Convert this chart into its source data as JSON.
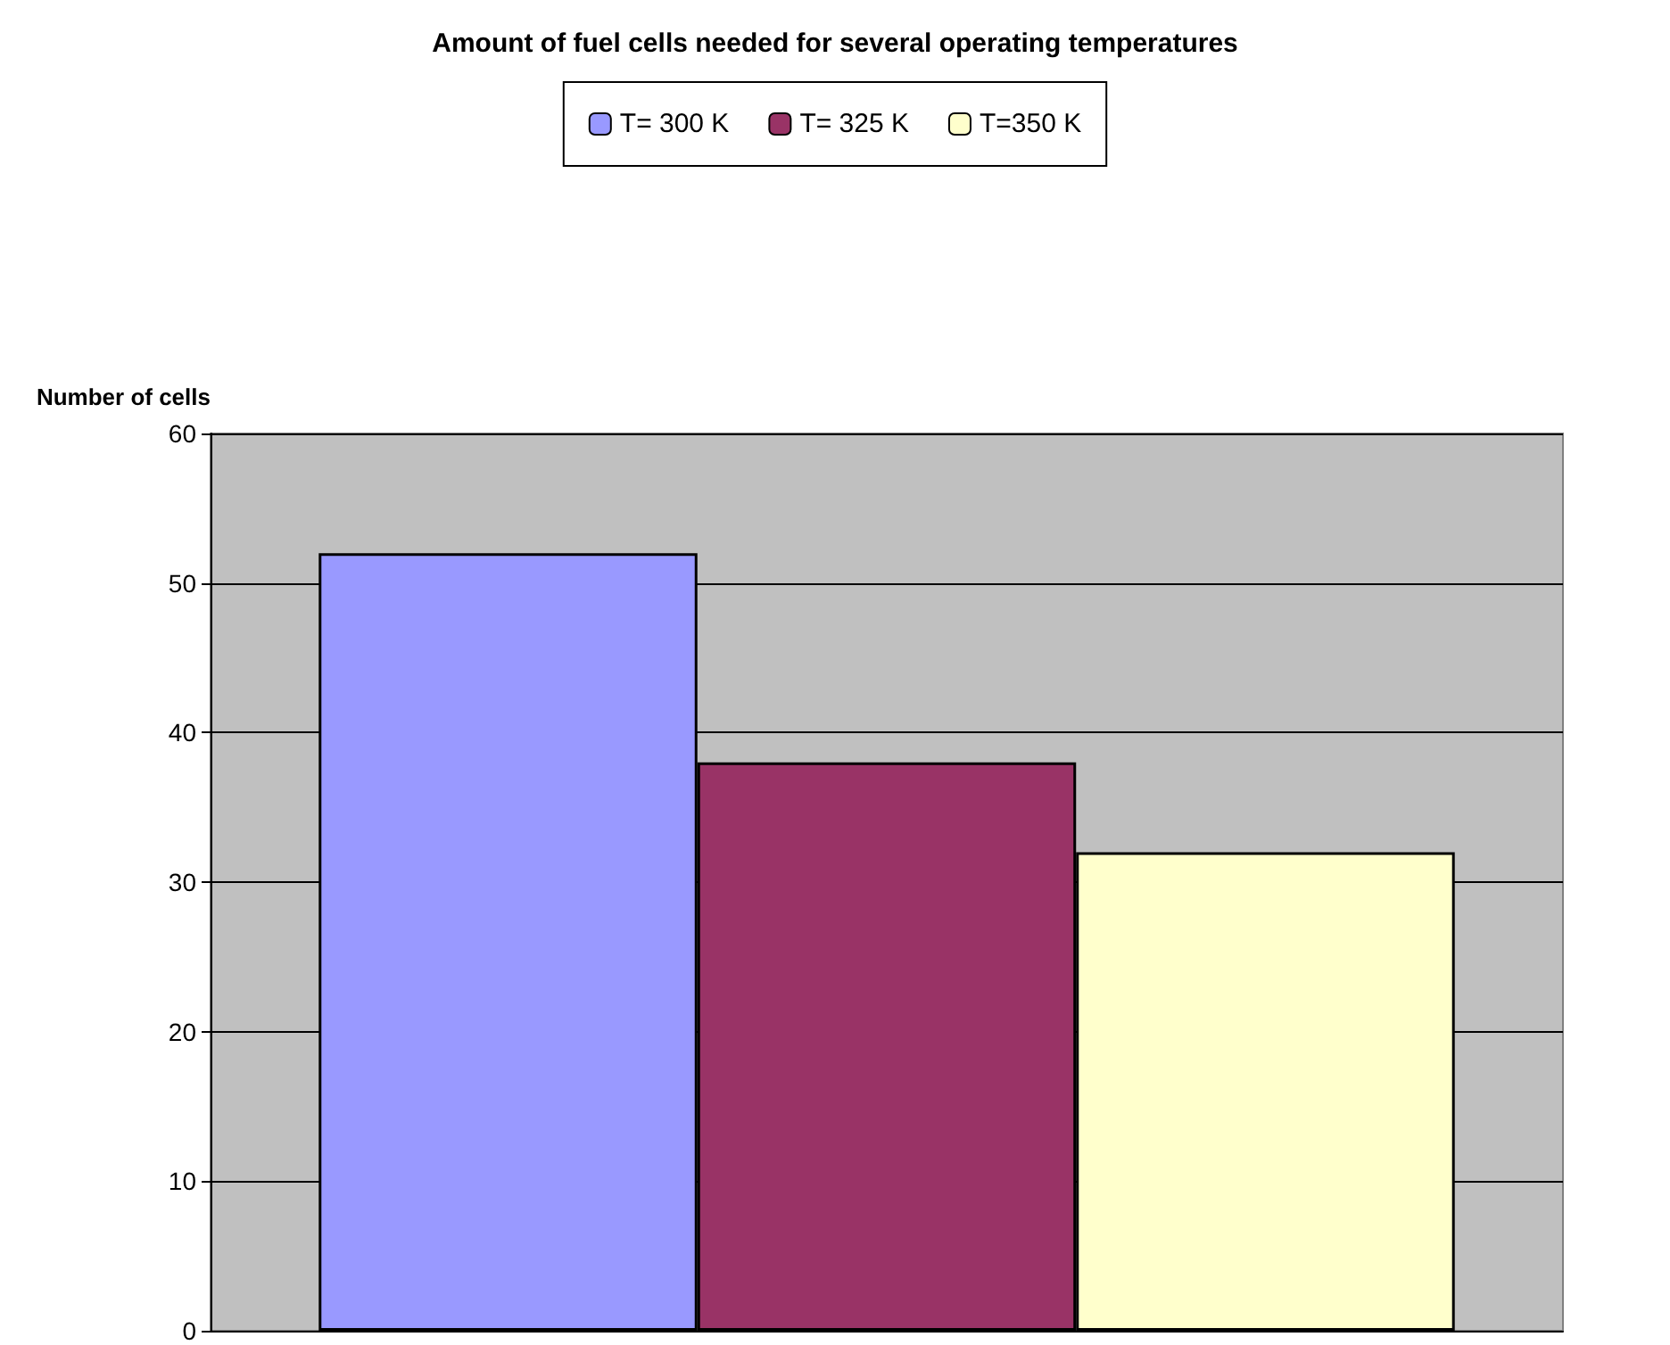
{
  "chart_data": {
    "type": "bar",
    "title": "Amount of fuel cells needed for several operating temperatures",
    "ylabel": "Number of cells",
    "categories": [
      null
    ],
    "series": [
      {
        "name": "T= 300 K",
        "color": "#9999ff",
        "values": [
          52
        ]
      },
      {
        "name": "T= 325 K",
        "color": "#993366",
        "values": [
          38
        ]
      },
      {
        "name": "T=350 K",
        "color": "#ffffcc",
        "values": [
          32
        ]
      }
    ],
    "ylim": [
      0,
      60
    ],
    "yticks": [
      0,
      10,
      20,
      30,
      40,
      50,
      60
    ],
    "grid": "y",
    "legend": "top"
  }
}
